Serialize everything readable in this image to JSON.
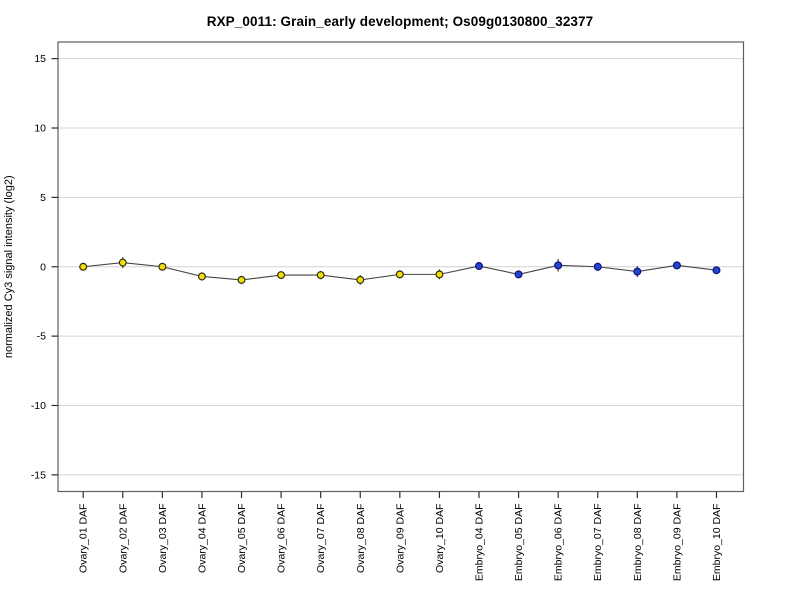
{
  "title": "RXP_0011: Grain_early development; Os09g0130800_32377",
  "chart_data": {
    "type": "line",
    "title": "RXP_0011: Grain_early development; Os09g0130800_32377",
    "xlabel": "",
    "ylabel": "normalized Cy3 signal intensity (log2)",
    "ylim": [
      -16.2,
      16.2
    ],
    "yticks": [
      15,
      10,
      5,
      0,
      -5,
      -10,
      -15
    ],
    "grid": true,
    "legend_position": "none",
    "categories": [
      "Ovary_01 DAF",
      "Ovary_02 DAF",
      "Ovary_03 DAF",
      "Ovary_04 DAF",
      "Ovary_05 DAF",
      "Ovary_06 DAF",
      "Ovary_07 DAF",
      "Ovary_08 DAF",
      "Ovary_09 DAF",
      "Ovary_10 DAF",
      "Embryo_04 DAF",
      "Embryo_05 DAF",
      "Embryo_06 DAF",
      "Embryo_07 DAF",
      "Embryo_08 DAF",
      "Embryo_09 DAF",
      "Embryo_10 DAF"
    ],
    "values": [
      0.0,
      0.3,
      0.0,
      -0.7,
      -0.95,
      -0.6,
      -0.6,
      -0.95,
      -0.55,
      -0.55,
      0.05,
      -0.55,
      0.1,
      0.0,
      -0.35,
      0.1,
      -0.25
    ],
    "errors": [
      0.2,
      0.4,
      0.25,
      0.3,
      0.3,
      0.25,
      0.3,
      0.35,
      0.3,
      0.35,
      0.25,
      0.2,
      0.45,
      0.3,
      0.4,
      0.25,
      0.2
    ],
    "series_groups": [
      {
        "name": "Ovary",
        "start": 0,
        "end": 9,
        "marker_fill": "#F2DE10",
        "marker_stroke": "#33300A"
      },
      {
        "name": "Embryo",
        "start": 10,
        "end": 16,
        "marker_fill": "#2645CF",
        "marker_stroke": "#0A1378"
      }
    ],
    "colors": {
      "line": "#454545",
      "error_bar": "#3a3a3a",
      "grid": "#d4d4d4",
      "plot_border": "#5f5f5f",
      "tick_mark": "#2e2e2e",
      "background": "#ffffff",
      "text": "#000000"
    }
  }
}
